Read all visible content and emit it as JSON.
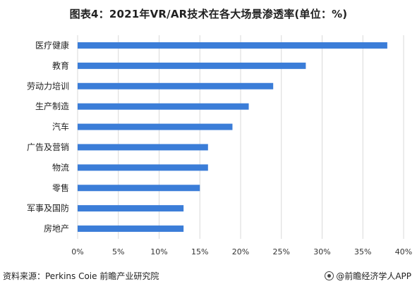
{
  "header": {
    "title": "图表4：2021年VR/AR技术在各大场景渗透率(单位：%)"
  },
  "chart_data": {
    "type": "bar",
    "orientation": "horizontal",
    "categories": [
      "医疗健康",
      "教育",
      "劳动力培训",
      "生产制造",
      "汽车",
      "广告及营销",
      "物流",
      "零售",
      "军事及国防",
      "房地产"
    ],
    "values": [
      38,
      28,
      24,
      21,
      19,
      16,
      16,
      15,
      13,
      13
    ],
    "xlim": [
      0,
      40
    ],
    "xticks": [
      0,
      5,
      10,
      15,
      20,
      25,
      30,
      35,
      40
    ],
    "tick_suffix": "%",
    "grid": "vertical",
    "bar_color": "#3B7DD8",
    "grid_color": "#D9D9D9"
  },
  "footer": {
    "source": "资料来源：Perkins Coie 前瞻产业研究院",
    "brand": "@前瞻经济学人APP"
  }
}
